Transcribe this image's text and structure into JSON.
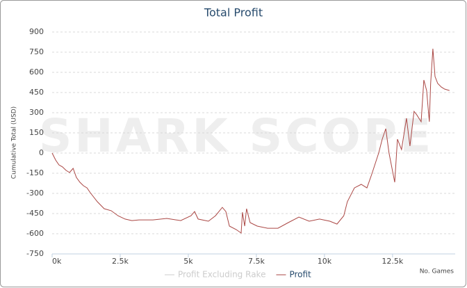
{
  "chart_data": {
    "type": "line",
    "title": "Total Profit",
    "watermark": "SHARK SCOPE",
    "ylabel": "Cumulative Total (USD)",
    "xlabel": "No. Games",
    "xlim": [
      0,
      14800
    ],
    "ylim": [
      -750,
      900
    ],
    "xticks": [
      {
        "value": 0,
        "label": "0k"
      },
      {
        "value": 2500,
        "label": "2.5k"
      },
      {
        "value": 5000,
        "label": "5k"
      },
      {
        "value": 7500,
        "label": "7.5k"
      },
      {
        "value": 10000,
        "label": "10k"
      },
      {
        "value": 12500,
        "label": "12.5k"
      }
    ],
    "yticks": [
      -750,
      -600,
      -450,
      -300,
      -150,
      0,
      150,
      300,
      450,
      600,
      750,
      900
    ],
    "grid": true,
    "x": [
      0,
      130,
      250,
      380,
      510,
      640,
      770,
      890,
      1020,
      1150,
      1280,
      1400,
      1660,
      1910,
      2170,
      2420,
      2680,
      2930,
      3190,
      3700,
      4210,
      4720,
      5100,
      5230,
      5360,
      5740,
      6000,
      6250,
      6380,
      6510,
      6760,
      6940,
      6990,
      7070,
      7140,
      7270,
      7530,
      7910,
      8290,
      8670,
      9060,
      9440,
      9820,
      10200,
      10460,
      10710,
      10840,
      11100,
      11350,
      11560,
      11740,
      11990,
      12120,
      12250,
      12370,
      12580,
      12680,
      12830,
      13010,
      13140,
      13290,
      13390,
      13550,
      13650,
      13750,
      13850,
      13900,
      13980,
      14060,
      14160,
      14290,
      14410,
      14590
    ],
    "series": [
      {
        "name": "Profit Excluding Rake",
        "color": "#cccccc",
        "visible": false
      },
      {
        "name": "Profit",
        "color": "#aa4643",
        "visible": true,
        "values": [
          0,
          -52,
          -88,
          -103,
          -129,
          -145,
          -114,
          -181,
          -217,
          -243,
          -259,
          -295,
          -362,
          -414,
          -429,
          -466,
          -491,
          -502,
          -497,
          -497,
          -486,
          -502,
          -466,
          -435,
          -491,
          -507,
          -466,
          -404,
          -435,
          -543,
          -569,
          -595,
          -440,
          -543,
          -414,
          -517,
          -543,
          -559,
          -559,
          -517,
          -476,
          -507,
          -491,
          -507,
          -528,
          -466,
          -362,
          -259,
          -233,
          -259,
          -155,
          0,
          103,
          181,
          0,
          -217,
          103,
          26,
          259,
          52,
          310,
          284,
          233,
          543,
          465,
          233,
          517,
          776,
          569,
          517,
          491,
          476,
          465
        ]
      }
    ]
  }
}
